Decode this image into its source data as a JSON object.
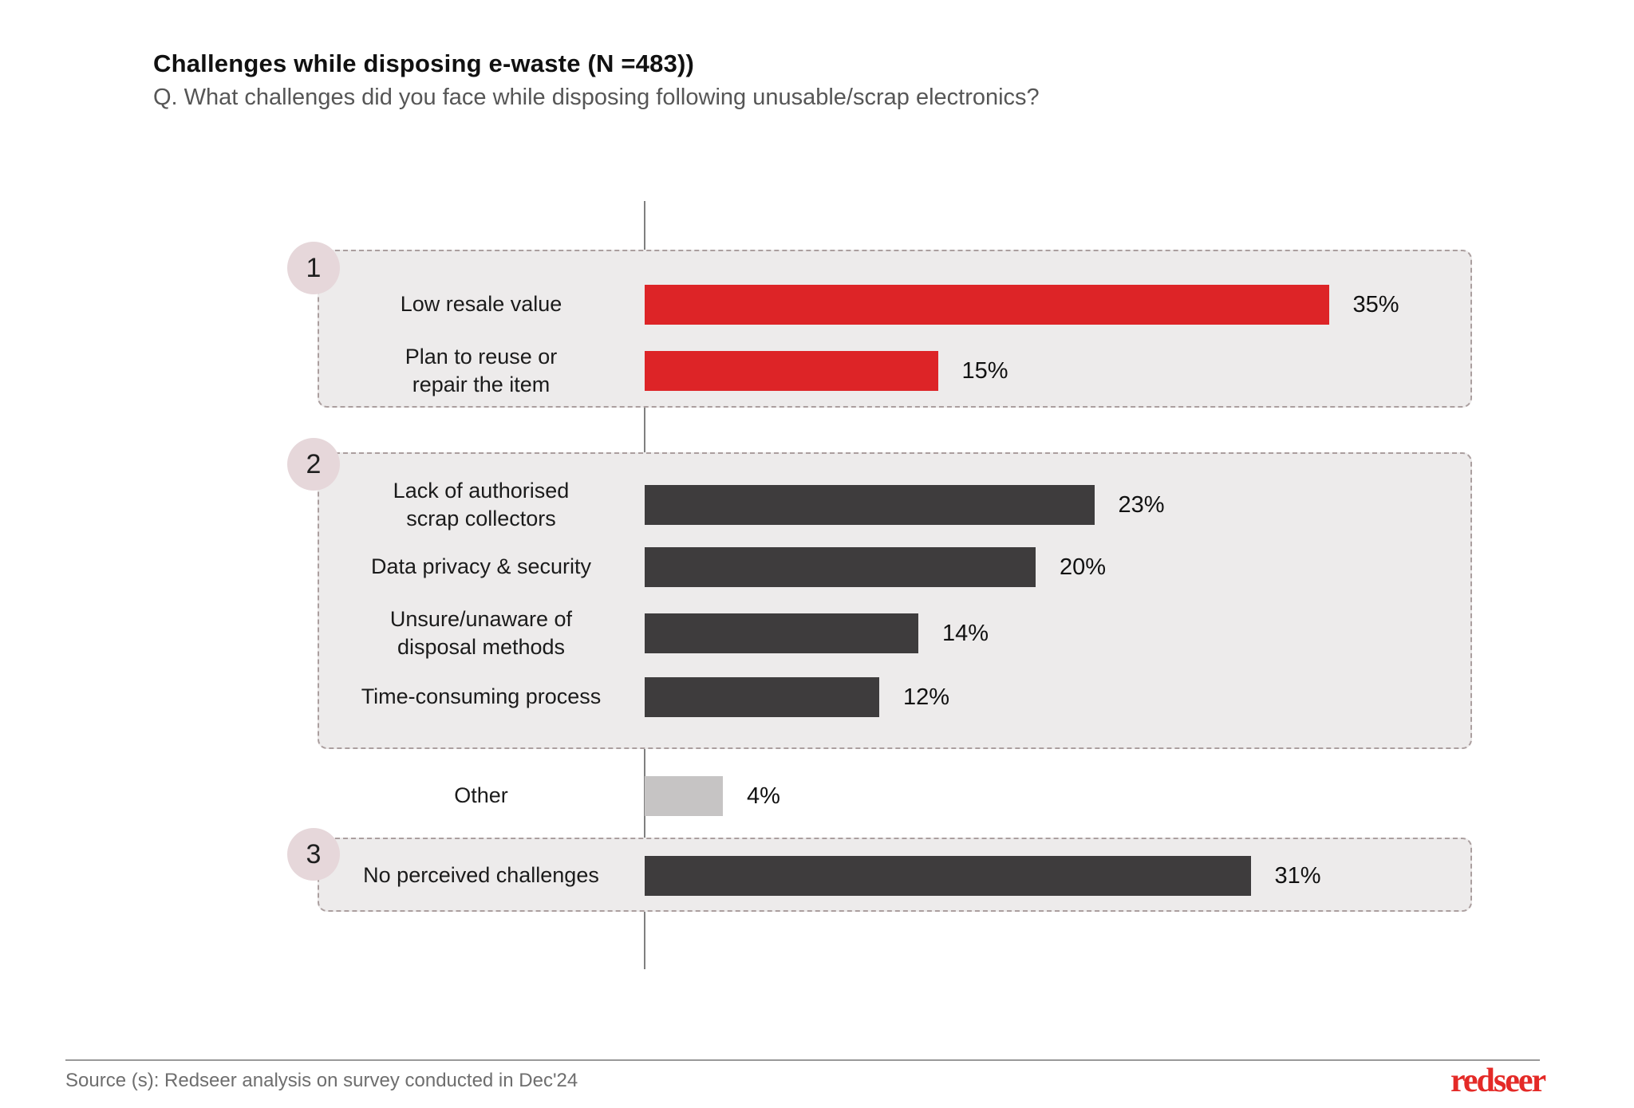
{
  "header": {
    "title": "Challenges while disposing e-waste (N =483))",
    "subtitle": "Q. What challenges did you face while disposing following unusable/scrap electronics?"
  },
  "chart_data": {
    "type": "bar",
    "orientation": "horizontal",
    "unit": "%",
    "title": "Challenges while disposing e-waste (N =483))",
    "xlim": [
      0,
      40
    ],
    "grid": false,
    "legend": "none",
    "groups": [
      {
        "badge": "1",
        "rows": [
          "Low resale value",
          "Plan to reuse or repair the item"
        ]
      },
      {
        "badge": "2",
        "rows": [
          "Lack of authorised scrap collectors",
          "Data privacy & security",
          "Unsure/unaware of disposal methods",
          "Time-consuming process"
        ]
      },
      {
        "badge": "3",
        "rows": [
          "No perceived challenges"
        ]
      }
    ],
    "rows": [
      {
        "label": "Low resale value",
        "value": 35,
        "value_label": "35%",
        "color": "#DD2427",
        "group": "1"
      },
      {
        "label": "Plan to reuse or\nrepair the item",
        "value": 15,
        "value_label": "15%",
        "color": "#DD2427",
        "group": "1"
      },
      {
        "label": "Lack of authorised\nscrap collectors",
        "value": 23,
        "value_label": "23%",
        "color": "#3E3C3D",
        "group": "2"
      },
      {
        "label": "Data privacy & security",
        "value": 20,
        "value_label": "20%",
        "color": "#3E3C3D",
        "group": "2"
      },
      {
        "label": "Unsure/unaware of\ndisposal methods",
        "value": 14,
        "value_label": "14%",
        "color": "#3E3C3D",
        "group": "2"
      },
      {
        "label": "Time-consuming process",
        "value": 12,
        "value_label": "12%",
        "color": "#3E3C3D",
        "group": "2"
      },
      {
        "label": "Other",
        "value": 4,
        "value_label": "4%",
        "color": "#C6C4C4",
        "group": null
      },
      {
        "label": "No perceived challenges",
        "value": 31,
        "value_label": "31%",
        "color": "#3E3C3D",
        "group": "3"
      }
    ]
  },
  "colors": {
    "accent_red": "#DD2427",
    "bar_dark": "#3E3C3D",
    "bar_gray": "#C6C4C4",
    "box_bg": "#EDEBEB",
    "badge_bg": "#E6D7DA",
    "dash_border": "#AB9F9F"
  },
  "footer": {
    "source": "Source (s): Redseer analysis on survey conducted in Dec'24",
    "logo": "redseer"
  }
}
